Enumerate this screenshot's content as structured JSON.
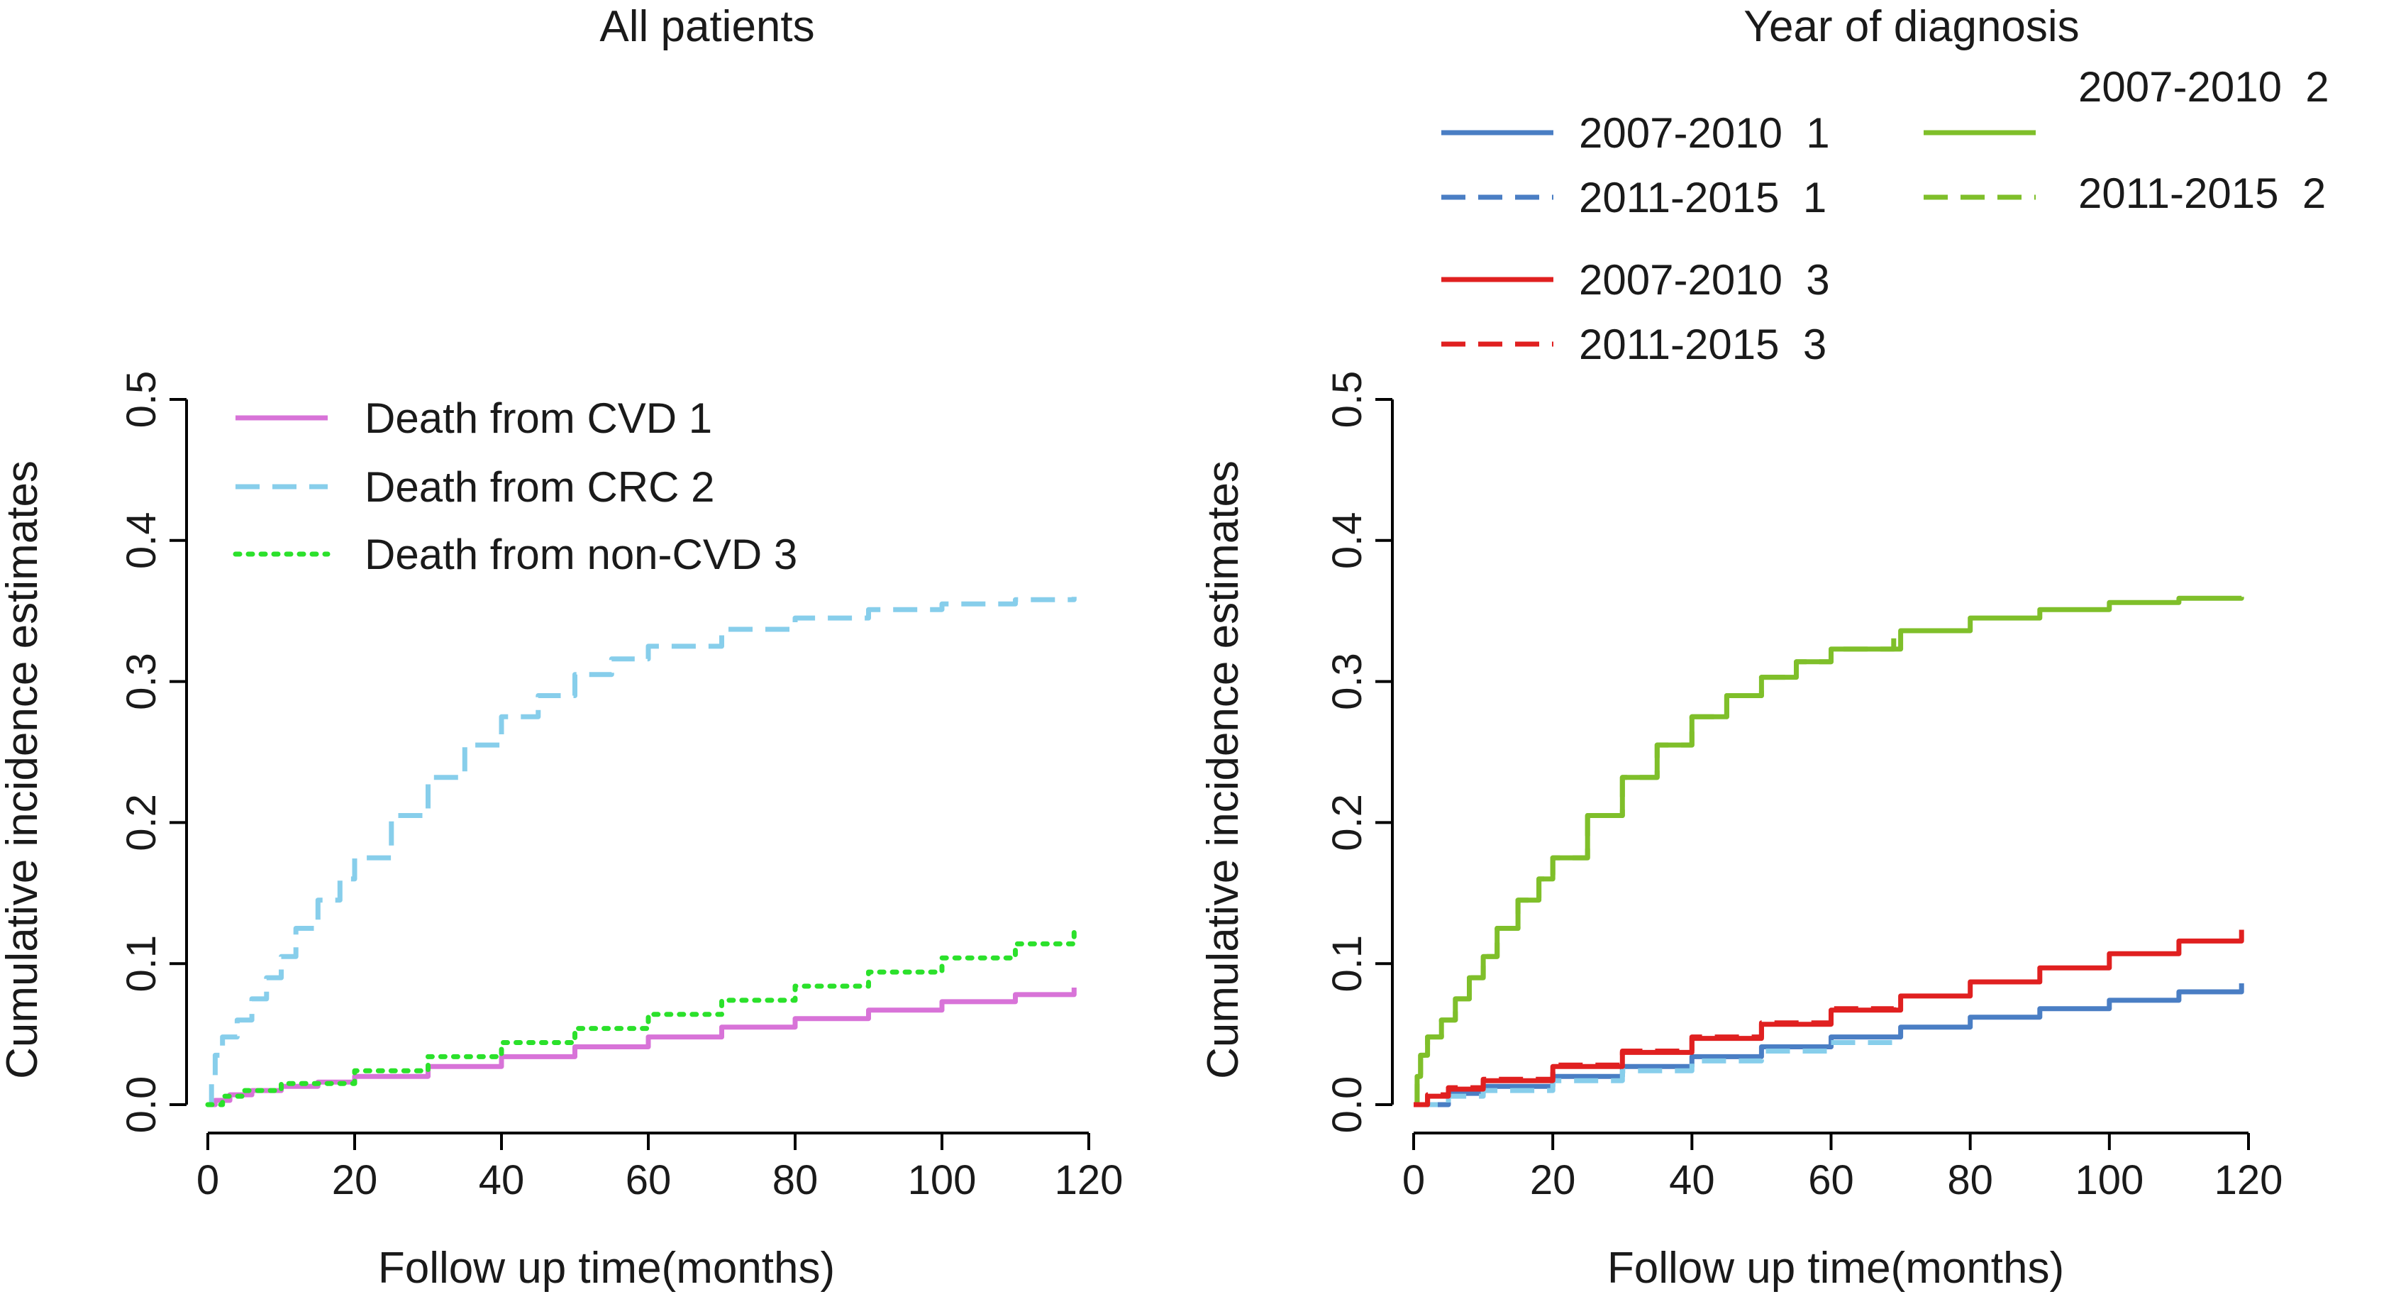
{
  "chart_data": [
    {
      "type": "line",
      "title": "All patients",
      "xlabel": "Follow up time(months)",
      "ylabel": "Cumulative incidence estimates",
      "xlim": [
        0,
        120
      ],
      "ylim": [
        0,
        0.5
      ],
      "xticks": [
        "0",
        "20",
        "40",
        "60",
        "80",
        "100",
        "120"
      ],
      "yticks": [
        "0.0",
        "0.1",
        "0.2",
        "0.3",
        "0.4",
        "0.5"
      ],
      "legend_position": "top-left",
      "series": [
        {
          "name": "Death from CVD 1",
          "color": "#d873d8",
          "style": "solid",
          "points": [
            [
              0,
              0
            ],
            [
              1,
              0.003
            ],
            [
              3,
              0.007
            ],
            [
              6,
              0.01
            ],
            [
              10,
              0.013
            ],
            [
              15,
              0.016
            ],
            [
              20,
              0.02
            ],
            [
              30,
              0.027
            ],
            [
              40,
              0.034
            ],
            [
              50,
              0.041
            ],
            [
              60,
              0.048
            ],
            [
              70,
              0.055
            ],
            [
              80,
              0.061
            ],
            [
              90,
              0.067
            ],
            [
              100,
              0.073
            ],
            [
              110,
              0.078
            ],
            [
              118,
              0.083
            ]
          ]
        },
        {
          "name": "Death from CRC 2",
          "color": "#87ceeb",
          "style": "dashed",
          "points": [
            [
              0,
              0
            ],
            [
              0.5,
              0.02
            ],
            [
              1,
              0.035
            ],
            [
              2,
              0.048
            ],
            [
              4,
              0.06
            ],
            [
              6,
              0.075
            ],
            [
              8,
              0.09
            ],
            [
              10,
              0.105
            ],
            [
              12,
              0.125
            ],
            [
              15,
              0.145
            ],
            [
              18,
              0.16
            ],
            [
              20,
              0.175
            ],
            [
              25,
              0.205
            ],
            [
              30,
              0.232
            ],
            [
              35,
              0.255
            ],
            [
              40,
              0.275
            ],
            [
              45,
              0.29
            ],
            [
              50,
              0.305
            ],
            [
              55,
              0.316
            ],
            [
              60,
              0.325
            ],
            [
              70,
              0.337
            ],
            [
              80,
              0.345
            ],
            [
              90,
              0.351
            ],
            [
              100,
              0.355
            ],
            [
              110,
              0.358
            ],
            [
              118,
              0.36
            ]
          ]
        },
        {
          "name": "Death from non-CVD 3",
          "color": "#2be12b",
          "style": "dotted",
          "points": [
            [
              0,
              0
            ],
            [
              2,
              0.006
            ],
            [
              5,
              0.01
            ],
            [
              10,
              0.015
            ],
            [
              20,
              0.024
            ],
            [
              30,
              0.034
            ],
            [
              40,
              0.044
            ],
            [
              50,
              0.054
            ],
            [
              60,
              0.064
            ],
            [
              70,
              0.074
            ],
            [
              80,
              0.084
            ],
            [
              90,
              0.094
            ],
            [
              100,
              0.104
            ],
            [
              110,
              0.114
            ],
            [
              118,
              0.122
            ]
          ]
        }
      ]
    },
    {
      "type": "line",
      "title": "Year of diagnosis",
      "xlabel": "Follow up time(months)",
      "ylabel": "Cumulative incidence estimates",
      "xlim": [
        0,
        120
      ],
      "ylim": [
        0,
        0.5
      ],
      "xticks": [
        "0",
        "20",
        "40",
        "60",
        "80",
        "100",
        "120"
      ],
      "yticks": [
        "0.0",
        "0.1",
        "0.2",
        "0.3",
        "0.4",
        "0.5"
      ],
      "legend_position": "top",
      "series": [
        {
          "name": "2007-2010  1",
          "color": "#4a7ec4",
          "style": "solid",
          "points": [
            [
              0,
              0
            ],
            [
              5,
              0.008
            ],
            [
              10,
              0.013
            ],
            [
              20,
              0.02
            ],
            [
              30,
              0.027
            ],
            [
              40,
              0.034
            ],
            [
              50,
              0.041
            ],
            [
              60,
              0.048
            ],
            [
              70,
              0.055
            ],
            [
              80,
              0.062
            ],
            [
              90,
              0.068
            ],
            [
              100,
              0.074
            ],
            [
              110,
              0.08
            ],
            [
              119,
              0.086
            ]
          ]
        },
        {
          "name": "2011-2015  1",
          "color": "#87ceeb",
          "style": "dashed",
          "points": [
            [
              0,
              0
            ],
            [
              5,
              0.006
            ],
            [
              10,
              0.01
            ],
            [
              20,
              0.017
            ],
            [
              30,
              0.024
            ],
            [
              40,
              0.031
            ],
            [
              50,
              0.038
            ],
            [
              60,
              0.044
            ],
            [
              69,
              0.05
            ]
          ]
        },
        {
          "name": "2007-2010  2",
          "color": "#7fbf2a",
          "style": "solid",
          "points": [
            [
              0,
              0
            ],
            [
              0.5,
              0.02
            ],
            [
              1,
              0.035
            ],
            [
              2,
              0.048
            ],
            [
              4,
              0.06
            ],
            [
              6,
              0.075
            ],
            [
              8,
              0.09
            ],
            [
              10,
              0.105
            ],
            [
              12,
              0.125
            ],
            [
              15,
              0.145
            ],
            [
              18,
              0.16
            ],
            [
              20,
              0.175
            ],
            [
              25,
              0.205
            ],
            [
              30,
              0.232
            ],
            [
              35,
              0.255
            ],
            [
              40,
              0.275
            ],
            [
              45,
              0.29
            ],
            [
              50,
              0.303
            ],
            [
              55,
              0.314
            ],
            [
              60,
              0.323
            ],
            [
              70,
              0.336
            ],
            [
              80,
              0.345
            ],
            [
              90,
              0.351
            ],
            [
              100,
              0.356
            ],
            [
              110,
              0.359
            ],
            [
              119,
              0.36
            ]
          ]
        },
        {
          "name": "2011-2015  2",
          "color": "#7fbf2a",
          "style": "dashed",
          "points": [
            [
              0,
              0
            ],
            [
              0.5,
              0.02
            ],
            [
              1,
              0.035
            ],
            [
              2,
              0.048
            ],
            [
              4,
              0.06
            ],
            [
              6,
              0.075
            ],
            [
              8,
              0.09
            ],
            [
              10,
              0.105
            ],
            [
              12,
              0.125
            ],
            [
              15,
              0.145
            ],
            [
              18,
              0.16
            ],
            [
              20,
              0.175
            ],
            [
              25,
              0.205
            ],
            [
              30,
              0.232
            ],
            [
              35,
              0.255
            ],
            [
              40,
              0.275
            ],
            [
              45,
              0.29
            ],
            [
              50,
              0.303
            ],
            [
              55,
              0.314
            ],
            [
              60,
              0.323
            ],
            [
              69,
              0.332
            ]
          ]
        },
        {
          "name": "2007-2010  3",
          "color": "#e02020",
          "style": "solid",
          "points": [
            [
              0,
              0
            ],
            [
              2,
              0.006
            ],
            [
              5,
              0.011
            ],
            [
              10,
              0.017
            ],
            [
              20,
              0.027
            ],
            [
              30,
              0.037
            ],
            [
              40,
              0.047
            ],
            [
              50,
              0.057
            ],
            [
              60,
              0.067
            ],
            [
              70,
              0.077
            ],
            [
              80,
              0.087
            ],
            [
              90,
              0.097
            ],
            [
              100,
              0.107
            ],
            [
              110,
              0.116
            ],
            [
              119,
              0.124
            ]
          ]
        },
        {
          "name": "2011-2015  3",
          "color": "#e02020",
          "style": "dashed",
          "points": [
            [
              0,
              0
            ],
            [
              2,
              0.007
            ],
            [
              5,
              0.012
            ],
            [
              10,
              0.018
            ],
            [
              20,
              0.028
            ],
            [
              30,
              0.038
            ],
            [
              40,
              0.048
            ],
            [
              50,
              0.058
            ],
            [
              60,
              0.068
            ],
            [
              69,
              0.077
            ]
          ]
        }
      ]
    }
  ]
}
